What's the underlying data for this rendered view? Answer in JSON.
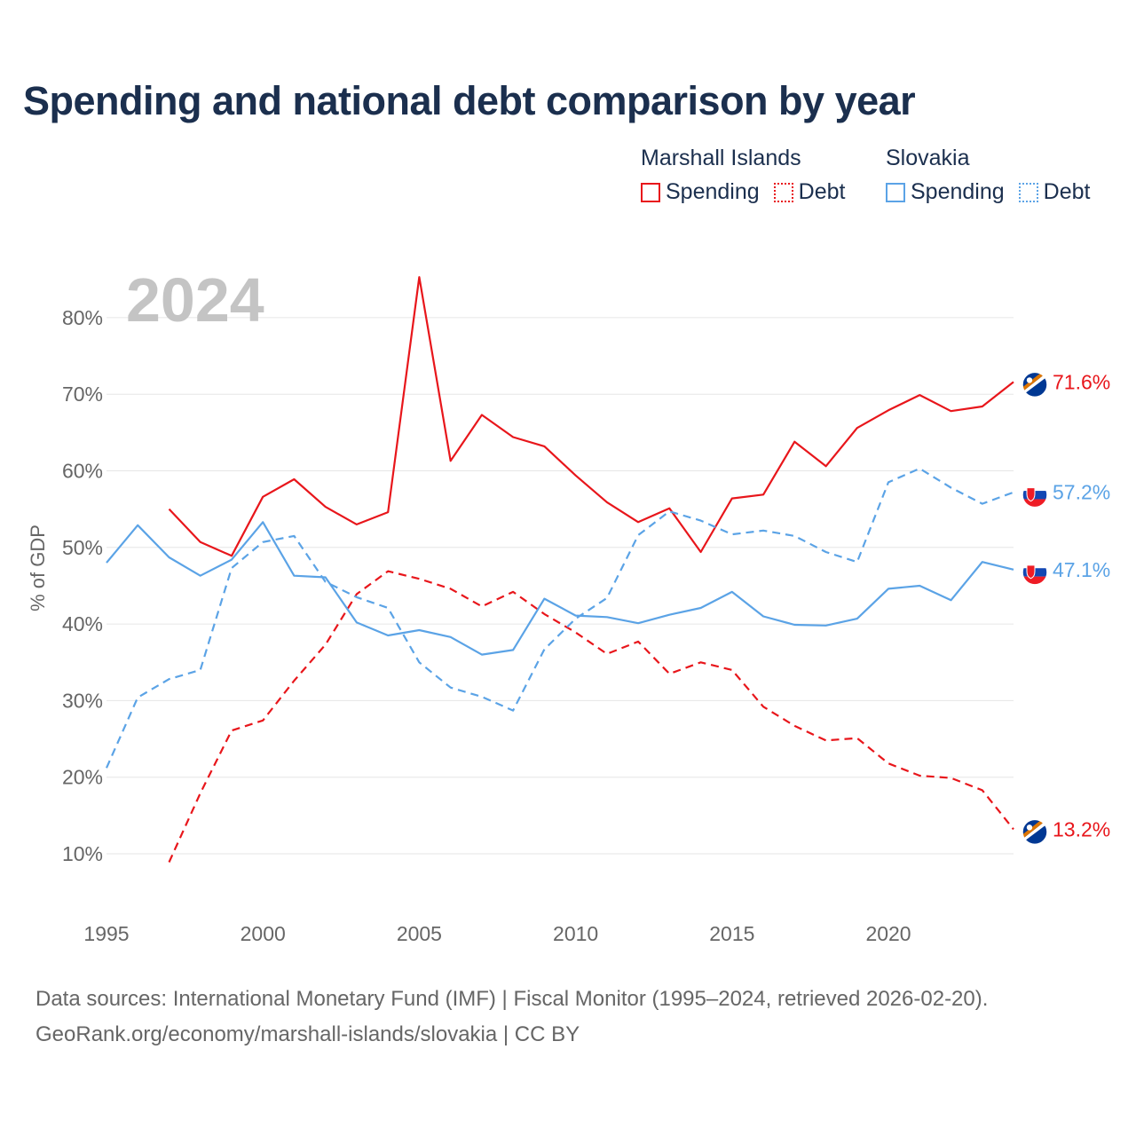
{
  "title": "Spending and national debt comparison by year",
  "legend": {
    "groups": [
      {
        "name": "Marshall Islands",
        "color": "#e8161b",
        "items": [
          "Spending",
          "Debt"
        ]
      },
      {
        "name": "Slovakia",
        "color": "#5ba3e6",
        "items": [
          "Spending",
          "Debt"
        ]
      }
    ]
  },
  "footer": {
    "line1": "Data sources: International Monetary Fund (IMF) | Fiscal Monitor (1995–2024, retrieved 2026-02-20).",
    "line2": "GeoRank.org/economy/marshall-islands/slovakia | CC BY"
  },
  "chart_data": {
    "type": "line",
    "title": "Spending and national debt comparison by year",
    "watermark_year": "2024",
    "ylabel": "% of GDP",
    "xlabel": "",
    "xlim": [
      1995,
      2024
    ],
    "ylim": [
      10,
      80
    ],
    "x_ticks": [
      1995,
      2000,
      2005,
      2010,
      2015,
      2020
    ],
    "x_tick_labels": [
      "1995",
      "2000",
      "2005",
      "2010",
      "2015",
      "2020"
    ],
    "y_ticks": [
      10,
      20,
      30,
      40,
      50,
      60,
      70,
      80
    ],
    "y_tick_labels": [
      "10%",
      "20%",
      "30%",
      "40%",
      "50%",
      "60%",
      "70%",
      "80%"
    ],
    "grid": true,
    "series": [
      {
        "name": "Marshall Islands Spending",
        "country": "Marshall Islands",
        "metric": "Spending",
        "color": "#e8161b",
        "dash": "solid",
        "flag": "marshall-islands-flag",
        "end_label": "71.6%",
        "x": [
          1997,
          1998,
          1999,
          2000,
          2001,
          2002,
          2003,
          2004,
          2005,
          2006,
          2007,
          2008,
          2009,
          2010,
          2011,
          2012,
          2013,
          2014,
          2015,
          2016,
          2017,
          2018,
          2019,
          2020,
          2021,
          2022,
          2023,
          2024
        ],
        "values": [
          55.0,
          50.7,
          48.9,
          56.6,
          58.9,
          55.3,
          53.0,
          54.6,
          85.3,
          61.3,
          67.3,
          64.4,
          63.2,
          59.4,
          55.9,
          53.3,
          55.1,
          49.4,
          56.4,
          56.9,
          63.8,
          60.6,
          65.6,
          67.9,
          69.9,
          67.8,
          68.4,
          71.6
        ]
      },
      {
        "name": "Marshall Islands Debt",
        "country": "Marshall Islands",
        "metric": "Debt",
        "color": "#e8161b",
        "dash": "dashed",
        "flag": "marshall-islands-flag",
        "end_label": "13.2%",
        "x": [
          1997,
          1998,
          1999,
          2000,
          2001,
          2002,
          2003,
          2004,
          2005,
          2006,
          2007,
          2008,
          2009,
          2010,
          2011,
          2012,
          2013,
          2014,
          2015,
          2016,
          2017,
          2018,
          2019,
          2020,
          2021,
          2022,
          2023,
          2024
        ],
        "values": [
          8.9,
          17.9,
          26.1,
          27.4,
          32.6,
          37.3,
          43.9,
          46.9,
          45.9,
          44.6,
          42.3,
          44.2,
          41.3,
          38.9,
          36.1,
          37.7,
          33.5,
          35.0,
          34.0,
          29.2,
          26.7,
          24.8,
          25.1,
          21.8,
          20.2,
          19.9,
          18.3,
          13.2
        ]
      },
      {
        "name": "Slovakia Spending",
        "country": "Slovakia",
        "metric": "Spending",
        "color": "#5ba3e6",
        "dash": "solid",
        "flag": "slovakia-flag",
        "end_label": "47.1%",
        "x": [
          1995,
          1996,
          1997,
          1998,
          1999,
          2000,
          2001,
          2002,
          2003,
          2004,
          2005,
          2006,
          2007,
          2008,
          2009,
          2010,
          2011,
          2012,
          2013,
          2014,
          2015,
          2016,
          2017,
          2018,
          2019,
          2020,
          2021,
          2022,
          2023,
          2024
        ],
        "values": [
          48.0,
          52.9,
          48.7,
          46.3,
          48.4,
          53.3,
          46.3,
          46.1,
          40.2,
          38.5,
          39.2,
          38.3,
          36.0,
          36.6,
          43.3,
          41.1,
          40.9,
          40.1,
          41.2,
          42.1,
          44.2,
          41.0,
          39.9,
          39.8,
          40.7,
          44.6,
          45.0,
          43.1,
          48.1,
          47.1
        ]
      },
      {
        "name": "Slovakia Debt",
        "country": "Slovakia",
        "metric": "Debt",
        "color": "#5ba3e6",
        "dash": "dashed",
        "flag": "slovakia-flag",
        "end_label": "57.2%",
        "x": [
          1995,
          1996,
          1997,
          1998,
          1999,
          2000,
          2001,
          2002,
          2003,
          2004,
          2005,
          2006,
          2007,
          2008,
          2009,
          2010,
          2011,
          2012,
          2013,
          2014,
          2015,
          2016,
          2017,
          2018,
          2019,
          2020,
          2021,
          2022,
          2023,
          2024
        ],
        "values": [
          21.2,
          30.4,
          32.8,
          34.0,
          47.3,
          50.7,
          51.5,
          45.5,
          43.5,
          42.1,
          35.0,
          31.7,
          30.5,
          28.7,
          36.7,
          40.7,
          43.4,
          51.6,
          54.7,
          53.5,
          51.7,
          52.2,
          51.5,
          49.4,
          48.1,
          58.5,
          60.3,
          57.8,
          55.7,
          57.2
        ]
      }
    ]
  }
}
